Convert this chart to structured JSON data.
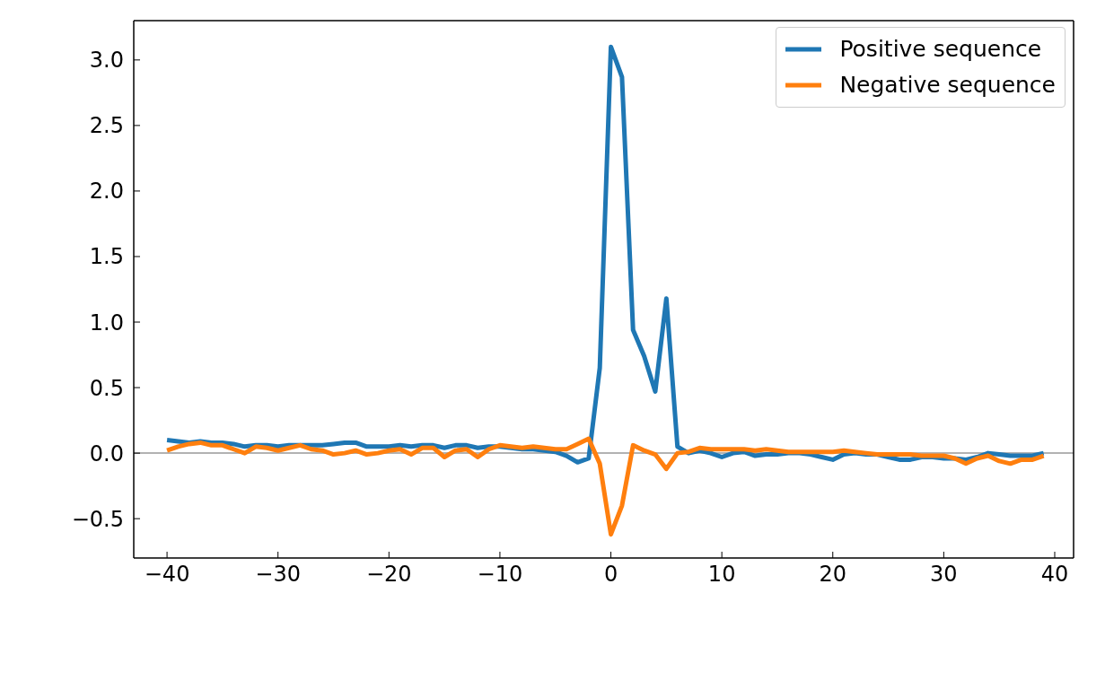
{
  "chart_data": {
    "type": "line",
    "x": [
      -40,
      -39,
      -38,
      -37,
      -36,
      -35,
      -34,
      -33,
      -32,
      -31,
      -30,
      -29,
      -28,
      -27,
      -26,
      -25,
      -24,
      -23,
      -22,
      -21,
      -20,
      -19,
      -18,
      -17,
      -16,
      -15,
      -14,
      -13,
      -12,
      -11,
      -10,
      -9,
      -8,
      -7,
      -6,
      -5,
      -4,
      -3,
      -2,
      -1,
      0,
      1,
      2,
      3,
      4,
      5,
      6,
      7,
      8,
      9,
      10,
      11,
      12,
      13,
      14,
      15,
      16,
      17,
      18,
      19,
      20,
      21,
      22,
      23,
      24,
      25,
      26,
      27,
      28,
      29,
      30,
      31,
      32,
      33,
      34,
      35,
      36,
      37,
      38,
      39
    ],
    "series": [
      {
        "name": "Positive sequence",
        "color": "#1f77b4",
        "values": [
          0.1,
          0.09,
          0.08,
          0.09,
          0.08,
          0.08,
          0.07,
          0.05,
          0.06,
          0.06,
          0.05,
          0.06,
          0.06,
          0.06,
          0.06,
          0.07,
          0.08,
          0.08,
          0.05,
          0.05,
          0.05,
          0.06,
          0.05,
          0.06,
          0.06,
          0.04,
          0.06,
          0.06,
          0.04,
          0.05,
          0.05,
          0.04,
          0.03,
          0.03,
          0.02,
          0.01,
          -0.02,
          -0.07,
          -0.04,
          0.65,
          3.1,
          2.87,
          0.94,
          0.74,
          0.47,
          1.18,
          0.05,
          0.0,
          0.02,
          0.0,
          -0.03,
          0.0,
          0.01,
          -0.02,
          -0.01,
          -0.01,
          0.0,
          0.0,
          -0.01,
          -0.03,
          -0.05,
          -0.01,
          0.0,
          -0.01,
          -0.01,
          -0.03,
          -0.05,
          -0.05,
          -0.03,
          -0.03,
          -0.04,
          -0.04,
          -0.05,
          -0.03,
          0.0,
          -0.01,
          -0.02,
          -0.02,
          -0.02,
          0.0
        ]
      },
      {
        "name": "Negative sequence",
        "color": "#ff7f0e",
        "values": [
          0.02,
          0.05,
          0.07,
          0.08,
          0.06,
          0.06,
          0.03,
          0.0,
          0.05,
          0.04,
          0.02,
          0.04,
          0.06,
          0.03,
          0.02,
          -0.01,
          0.0,
          0.02,
          -0.01,
          0.0,
          0.02,
          0.03,
          -0.01,
          0.04,
          0.04,
          -0.03,
          0.02,
          0.03,
          -0.03,
          0.03,
          0.06,
          0.05,
          0.04,
          0.05,
          0.04,
          0.03,
          0.03,
          0.07,
          0.11,
          -0.08,
          -0.62,
          -0.4,
          0.06,
          0.02,
          -0.01,
          -0.12,
          0.0,
          0.01,
          0.04,
          0.03,
          0.03,
          0.03,
          0.03,
          0.02,
          0.03,
          0.02,
          0.01,
          0.01,
          0.01,
          0.01,
          0.01,
          0.02,
          0.01,
          0.0,
          -0.01,
          -0.01,
          -0.01,
          -0.01,
          -0.02,
          -0.02,
          -0.02,
          -0.04,
          -0.08,
          -0.04,
          -0.02,
          -0.06,
          -0.08,
          -0.05,
          -0.05,
          -0.02
        ]
      }
    ],
    "xlim": [
      -43,
      41.7
    ],
    "xticks": [
      {
        "value": -40,
        "label": "−40"
      },
      {
        "value": -30,
        "label": "−30"
      },
      {
        "value": -20,
        "label": "−20"
      },
      {
        "value": -10,
        "label": "−10"
      },
      0,
      10,
      20,
      30,
      40
    ],
    "ylim": [
      -0.8,
      3.3
    ],
    "yticks": [
      {
        "value": -0.5,
        "label": "−0.5"
      },
      {
        "value": 0,
        "label": "0.0"
      },
      0.5,
      {
        "value": 1,
        "label": "1.0"
      },
      1.5,
      {
        "value": 2,
        "label": "2.0"
      },
      2.5,
      {
        "value": 3,
        "label": "3.0"
      }
    ],
    "ref_lines": [
      {
        "axis": "y",
        "value": 0,
        "color": "#999999"
      }
    ],
    "legend": "top right",
    "grid": false,
    "marker": "none",
    "line_style": "solid"
  }
}
